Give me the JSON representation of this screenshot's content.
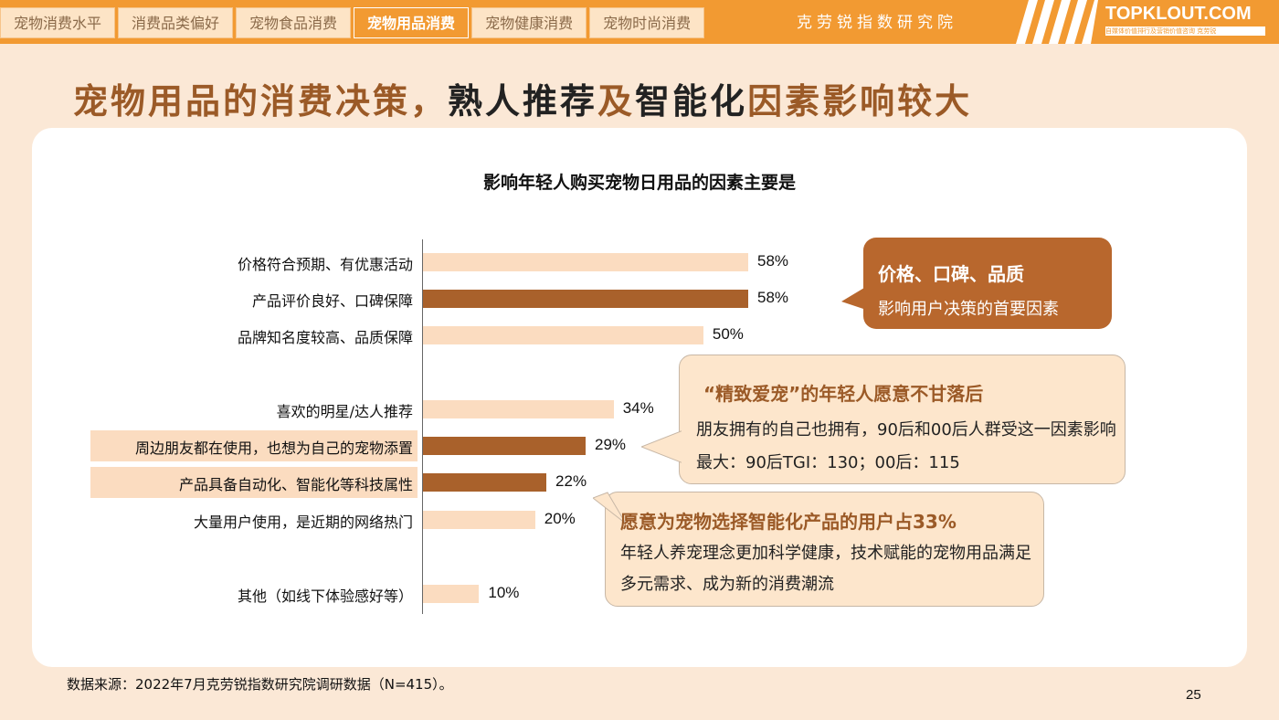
{
  "nav": {
    "tabs": [
      "宠物消费水平",
      "消费品类偏好",
      "宠物食品消费",
      "宠物用品消费",
      "宠物健康消费",
      "宠物时尚消费"
    ],
    "active_index": 3
  },
  "header": {
    "org_name": "克劳锐指数研究院",
    "brand": "TOPKLOUT.COM",
    "brand_sub": "自媒体价值排行及营销价值咨询 克劳锐"
  },
  "page_title": {
    "part1": "宠物用品的消费决策，",
    "part2": "熟人推荐",
    "part3": "及",
    "part4": "智能化",
    "part5": "因素影响较大"
  },
  "colors": {
    "accent": "#f29a32",
    "brown": "#9b5a27",
    "bar_dark": "#a9612b",
    "bar_light": "#fbdcc0"
  },
  "chart_data": {
    "type": "bar",
    "orientation": "horizontal",
    "title": "影响年轻人购买宠物日用品的因素主要是",
    "xlim": [
      0,
      100
    ],
    "categories": [
      "价格符合预期、有优惠活动",
      "产品评价良好、口碑保障",
      "品牌知名度较高、品质保障",
      "喜欢的明星/达人推荐",
      "周边朋友都在使用，也想为自己的宠物添置",
      "产品具备自动化、智能化等科技属性",
      "大量用户使用，是近期的网络热门",
      "其他（如线下体验感好等）"
    ],
    "values": [
      58,
      58,
      50,
      34,
      29,
      22,
      20,
      10
    ],
    "value_labels": [
      "58%",
      "58%",
      "50%",
      "34%",
      "29%",
      "22%",
      "20%",
      "10%"
    ],
    "highlighted": [
      false,
      true,
      false,
      false,
      true,
      true,
      false,
      false
    ],
    "grid": false
  },
  "callouts": [
    {
      "heading": "价格、口碑、品质",
      "body": "影响用户决策的首要因素"
    },
    {
      "heading": "“精致爱宠”的年轻人愿意不甘落后",
      "body": "朋友拥有的自己也拥有，90后和00后人群受这一因素影响最大：90后TGI：130；00后：115"
    },
    {
      "heading": "愿意为宠物选择智能化产品的用户占33%",
      "body": "年轻人养宠理念更加科学健康，技术赋能的宠物用品满足多元需求、成为新的消费潮流"
    }
  ],
  "footer": {
    "source": "数据来源：2022年7月克劳锐指数研究院调研数据（N=415）。",
    "page_number": "25"
  }
}
